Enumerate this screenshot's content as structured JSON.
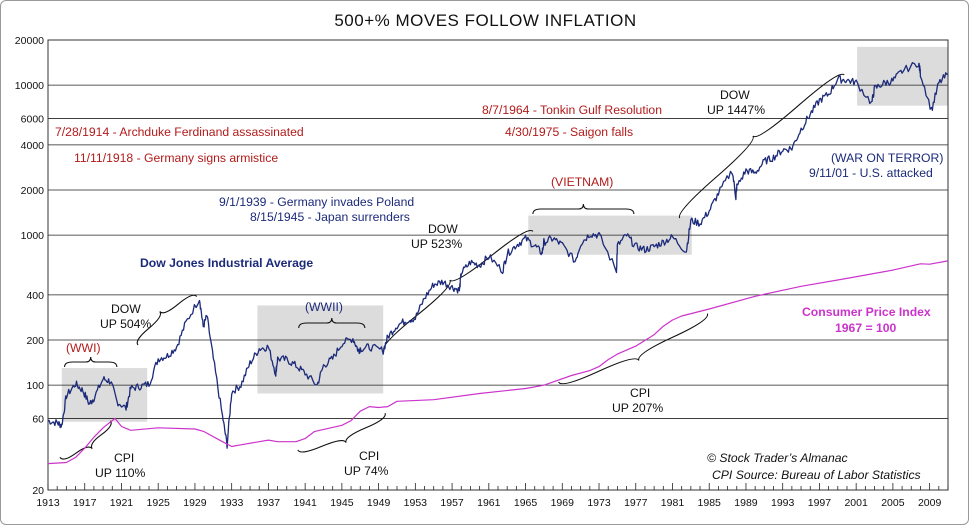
{
  "chart_data": {
    "type": "line",
    "title": "500+% MOVES FOLLOW INFLATION",
    "yscale": "log",
    "xlim": [
      1913,
      2011
    ],
    "ylim": [
      20,
      20000
    ],
    "y_ticks": [
      20,
      60,
      100,
      200,
      400,
      1000,
      2000,
      4000,
      6000,
      10000,
      20000
    ],
    "y_tick_labels": [
      "20",
      "60",
      "100",
      "200",
      "400",
      "1000",
      "2000",
      "4000",
      "6000",
      "10000",
      "20000"
    ],
    "x_tick_labels": [
      "1913",
      "1917",
      "1921",
      "1925",
      "1929",
      "1933",
      "1937",
      "1941",
      "1945",
      "1949",
      "1953",
      "1957",
      "1961",
      "1965",
      "1969",
      "1973",
      "1977",
      "1981",
      "1985",
      "1989",
      "1993",
      "1997",
      "2001",
      "2005",
      "2009"
    ],
    "series": [
      {
        "name": "Dow Jones Industrial Average",
        "color": "#1c2a7a",
        "x": [
          1913,
          1914,
          1914.5,
          1915,
          1916,
          1916.8,
          1917.5,
          1918,
          1919,
          1919.8,
          1920.5,
          1921.5,
          1922,
          1923,
          1924,
          1925,
          1926,
          1927,
          1928,
          1929.5,
          1929.9,
          1930.3,
          1931,
          1932,
          1932.5,
          1933,
          1934,
          1935,
          1936,
          1937,
          1937.8,
          1938,
          1939,
          1940,
          1941,
          1942.3,
          1943,
          1944,
          1945,
          1946.2,
          1946.8,
          1947,
          1948,
          1949.5,
          1950,
          1951,
          1952,
          1953,
          1954,
          1955,
          1956,
          1957,
          1957.8,
          1958,
          1959,
          1960,
          1961,
          1962.5,
          1963,
          1964,
          1965,
          1966,
          1966.8,
          1967,
          1968,
          1969,
          1970.4,
          1971,
          1972,
          1973,
          1974.9,
          1975,
          1976,
          1977,
          1978,
          1979,
          1980,
          1981,
          1982.5,
          1983,
          1984,
          1985,
          1986,
          1987.5,
          1987.9,
          1988,
          1989,
          1990,
          1991,
          1992,
          1993,
          1994,
          1995,
          1996,
          1997,
          1998,
          1999,
          2000,
          2001,
          2002.7,
          2003,
          2004,
          2005,
          2006,
          2007.8,
          2008,
          2009.2,
          2010,
          2011
        ],
        "y": [
          58,
          56,
          54,
          85,
          102,
          92,
          75,
          82,
          110,
          106,
          78,
          70,
          95,
          98,
          102,
          150,
          157,
          180,
          260,
          380,
          245,
          290,
          150,
          62,
          40,
          90,
          100,
          140,
          175,
          180,
          120,
          150,
          148,
          135,
          120,
          100,
          135,
          150,
          190,
          205,
          170,
          175,
          180,
          170,
          210,
          250,
          270,
          280,
          380,
          470,
          490,
          450,
          430,
          560,
          660,
          630,
          720,
          580,
          750,
          860,
          950,
          850,
          760,
          900,
          950,
          860,
          670,
          880,
          1020,
          1000,
          580,
          850,
          1000,
          840,
          800,
          840,
          900,
          970,
          780,
          1250,
          1200,
          1450,
          1900,
          2700,
          1800,
          2100,
          2700,
          2600,
          3100,
          3300,
          3700,
          3800,
          5100,
          6400,
          7900,
          8700,
          11000,
          10800,
          10400,
          7600,
          9500,
          10300,
          10700,
          12400,
          14100,
          12000,
          6800,
          10300,
          11900
        ]
      },
      {
        "name": "Consumer Price Index",
        "subtitle": "1967 = 100",
        "color": "#cc33cc",
        "x": [
          1913,
          1915,
          1916,
          1917,
          1918,
          1919,
          1920.3,
          1921,
          1922,
          1925,
          1929,
          1930,
          1932,
          1933,
          1934,
          1937,
          1938,
          1940,
          1941,
          1942,
          1945,
          1946,
          1947,
          1948,
          1949,
          1950,
          1951,
          1955,
          1960,
          1965,
          1967,
          1970,
          1972,
          1973,
          1974,
          1975,
          1977,
          1979,
          1980,
          1981,
          1982,
          1985,
          1990,
          1995,
          2000,
          2005,
          2008,
          2009,
          2011
        ],
        "y": [
          30,
          30.5,
          33,
          38,
          45,
          52,
          60,
          53,
          50,
          52,
          51,
          49,
          42,
          39,
          40,
          43,
          42,
          42,
          44,
          49,
          54,
          58,
          67,
          72,
          71,
          72,
          78,
          80,
          88,
          95,
          100,
          116,
          125,
          133,
          148,
          161,
          182,
          217,
          247,
          272,
          289,
          322,
          391,
          456,
          515,
          585,
          644,
          640,
          674
        ]
      }
    ],
    "shaded_periods": [
      {
        "label": "(WWI)",
        "x": [
          1914.5,
          1923.8
        ]
      },
      {
        "label": "(WWII)",
        "x": [
          1935.8,
          1949.5
        ]
      },
      {
        "label": "(VIETNAM)",
        "x": [
          1965.3,
          1983.1
        ]
      },
      {
        "label": "",
        "x": [
          2001.1,
          2011
        ]
      }
    ],
    "moves": [
      {
        "label": "DOW",
        "value": "UP 504%"
      },
      {
        "label": "DOW",
        "value": "UP 523%"
      },
      {
        "label": "DOW",
        "value": "UP 1447%"
      },
      {
        "label": "CPI",
        "value": "UP 110%"
      },
      {
        "label": "CPI",
        "value": "UP 74%"
      },
      {
        "label": "CPI",
        "value": "UP 207%"
      }
    ],
    "annotations": {
      "archduke": "7/28/1914 - Archduke Ferdinand assassinated",
      "armistice": "11/11/1918 - Germany signs armistice",
      "poland": "9/1/1939 - Germany invades Poland",
      "japan": "8/15/1945 - Japan surrenders",
      "tonkin": "8/7/1964 - Tonkin Gulf Resolution",
      "saigon": "4/30/1975 - Saigon falls",
      "war_on_terror": "(WAR ON TERROR)",
      "attacked": "9/11/01 - U.S. attacked",
      "dow_label": "Dow Jones Industrial Average",
      "cpi_label": "Consumer Price Index",
      "cpi_base": "1967 = 100",
      "copyright": "© Stock Trader’s Almanac",
      "source": "CPI Source: Bureau of Labor Statistics"
    }
  }
}
